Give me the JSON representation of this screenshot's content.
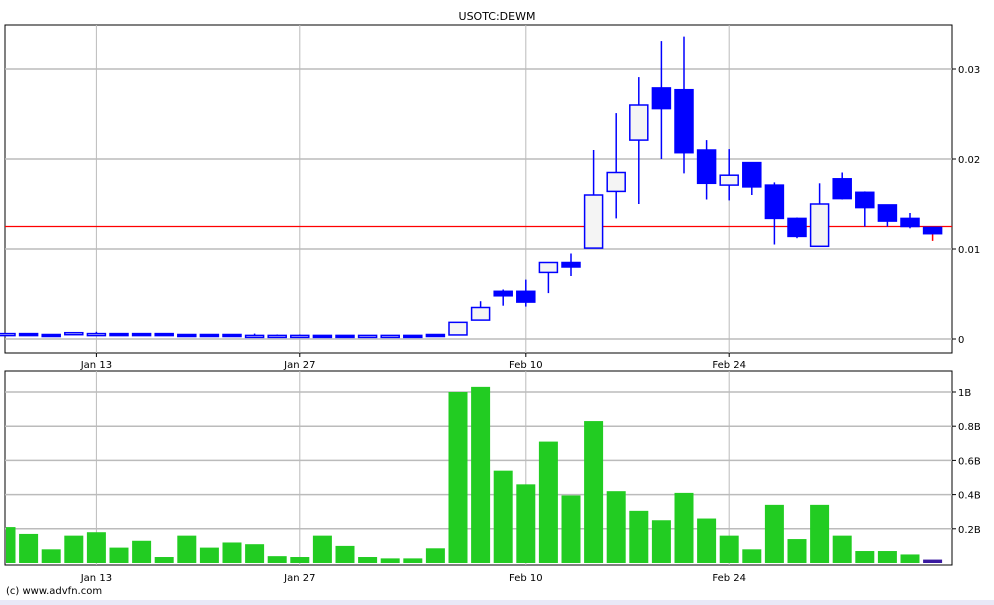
{
  "title": "USOTC:DEWM",
  "footer": "(c) www.advfn.com",
  "colors": {
    "up_fill": "#f4f4f4",
    "candle": "#0000ff",
    "volume": "#22cc22",
    "last_volume": "#3a1aa0",
    "price_line": "#ff0000",
    "grid": "#bbbbbb"
  },
  "chart_data": [
    {
      "type": "candlestick",
      "title": "USOTC:DEWM",
      "x_ticks": [
        {
          "label": "Jan 13",
          "index": 4
        },
        {
          "label": "Jan 27",
          "index": 13
        },
        {
          "label": "Feb 10",
          "index": 23
        },
        {
          "label": "Feb 24",
          "index": 32
        }
      ],
      "y_ticks": [
        {
          "label": "0",
          "value": 0
        },
        {
          "label": "0.01",
          "value": 0.01
        },
        {
          "label": "0.02",
          "value": 0.02
        },
        {
          "label": "0.03",
          "value": 0.03
        }
      ],
      "ylim": [
        -0.0015,
        0.0355
      ],
      "grid": true,
      "reference_line": 0.0125,
      "ohlc_fields": [
        "open",
        "high",
        "low",
        "close"
      ],
      "candles": [
        [
          0.0006,
          0.0006,
          0.0006,
          0.0006
        ],
        [
          0.0006,
          0.0006,
          0.0004,
          0.0005
        ],
        [
          0.0005,
          0.0005,
          0.0004,
          0.0004
        ],
        [
          0.0005,
          0.0007,
          0.0005,
          0.0007
        ],
        [
          0.0006,
          0.0008,
          0.0005,
          0.0006
        ],
        [
          0.0006,
          0.0006,
          0.0005,
          0.0005
        ],
        [
          0.0006,
          0.0006,
          0.0004,
          0.0005
        ],
        [
          0.0006,
          0.0006,
          0.0005,
          0.0005
        ],
        [
          0.0005,
          0.0005,
          0.0003,
          0.0004
        ],
        [
          0.0005,
          0.0005,
          0.0004,
          0.0004
        ],
        [
          0.0005,
          0.0005,
          0.0004,
          0.0004
        ],
        [
          0.0004,
          0.0006,
          0.0004,
          0.0004
        ],
        [
          0.0004,
          0.0005,
          0.0004,
          0.0004
        ],
        [
          0.0004,
          0.0005,
          0.0004,
          0.0004
        ],
        [
          0.0004,
          0.0004,
          0.0003,
          0.0003
        ],
        [
          0.0004,
          0.0004,
          0.0003,
          0.0003
        ],
        [
          0.0004,
          0.0004,
          0.0003,
          0.0004
        ],
        [
          0.0004,
          0.0004,
          0.0003,
          0.0004
        ],
        [
          0.0004,
          0.0004,
          0.0003,
          0.0003
        ],
        [
          0.0005,
          0.0005,
          0.0004,
          0.0004
        ],
        [
          0.00045,
          0.00185,
          0.00045,
          0.00185
        ],
        [
          0.0021,
          0.0042,
          0.0021,
          0.0035
        ],
        [
          0.0053,
          0.0055,
          0.0037,
          0.0048
        ],
        [
          0.0053,
          0.0066,
          0.0036,
          0.0041
        ],
        [
          0.0074,
          0.0085,
          0.0051,
          0.0085
        ],
        [
          0.0085,
          0.0095,
          0.007,
          0.008
        ],
        [
          0.0101,
          0.021,
          0.0101,
          0.016
        ],
        [
          0.0164,
          0.0251,
          0.0134,
          0.0185
        ],
        [
          0.0221,
          0.0291,
          0.015,
          0.026
        ],
        [
          0.0279,
          0.0331,
          0.02,
          0.0256
        ],
        [
          0.0277,
          0.0336,
          0.0184,
          0.0207
        ],
        [
          0.021,
          0.0221,
          0.0155,
          0.0173
        ],
        [
          0.0171,
          0.0211,
          0.0154,
          0.0182
        ],
        [
          0.0196,
          0.0196,
          0.016,
          0.0169
        ],
        [
          0.0171,
          0.0174,
          0.0105,
          0.0134
        ],
        [
          0.0134,
          0.0135,
          0.0112,
          0.0114
        ],
        [
          0.0103,
          0.0173,
          0.0103,
          0.015
        ],
        [
          0.0178,
          0.0185,
          0.0155,
          0.0156
        ],
        [
          0.0163,
          0.0164,
          0.0125,
          0.0146
        ],
        [
          0.0149,
          0.0149,
          0.0125,
          0.0131
        ],
        [
          0.0134,
          0.014,
          0.0123,
          0.0125
        ],
        [
          0.0124,
          0.0124,
          0.0109,
          0.0117
        ]
      ]
    },
    {
      "type": "bar",
      "x_ticks": [
        {
          "label": "Jan 13",
          "index": 4
        },
        {
          "label": "Jan 27",
          "index": 13
        },
        {
          "label": "Feb 10",
          "index": 23
        },
        {
          "label": "Feb 24",
          "index": 32
        }
      ],
      "y_ticks": [
        {
          "label": "0.2B",
          "value": 0.2
        },
        {
          "label": "0.4B",
          "value": 0.4
        },
        {
          "label": "0.6B",
          "value": 0.6
        },
        {
          "label": "0.8B",
          "value": 0.8
        },
        {
          "label": "1B",
          "value": 1.0
        }
      ],
      "ylim": [
        0,
        1.1
      ],
      "grid": true,
      "unit": "B",
      "values": [
        0.21,
        0.17,
        0.08,
        0.16,
        0.18,
        0.09,
        0.13,
        0.035,
        0.16,
        0.09,
        0.12,
        0.11,
        0.04,
        0.035,
        0.16,
        0.1,
        0.035,
        0.027,
        0.027,
        0.086,
        1.0,
        1.03,
        0.54,
        0.46,
        0.71,
        0.395,
        0.83,
        0.42,
        0.305,
        0.25,
        0.41,
        0.26,
        0.16,
        0.08,
        0.34,
        0.14,
        0.34,
        0.16,
        0.07,
        0.07,
        0.05,
        0.02
      ]
    }
  ]
}
